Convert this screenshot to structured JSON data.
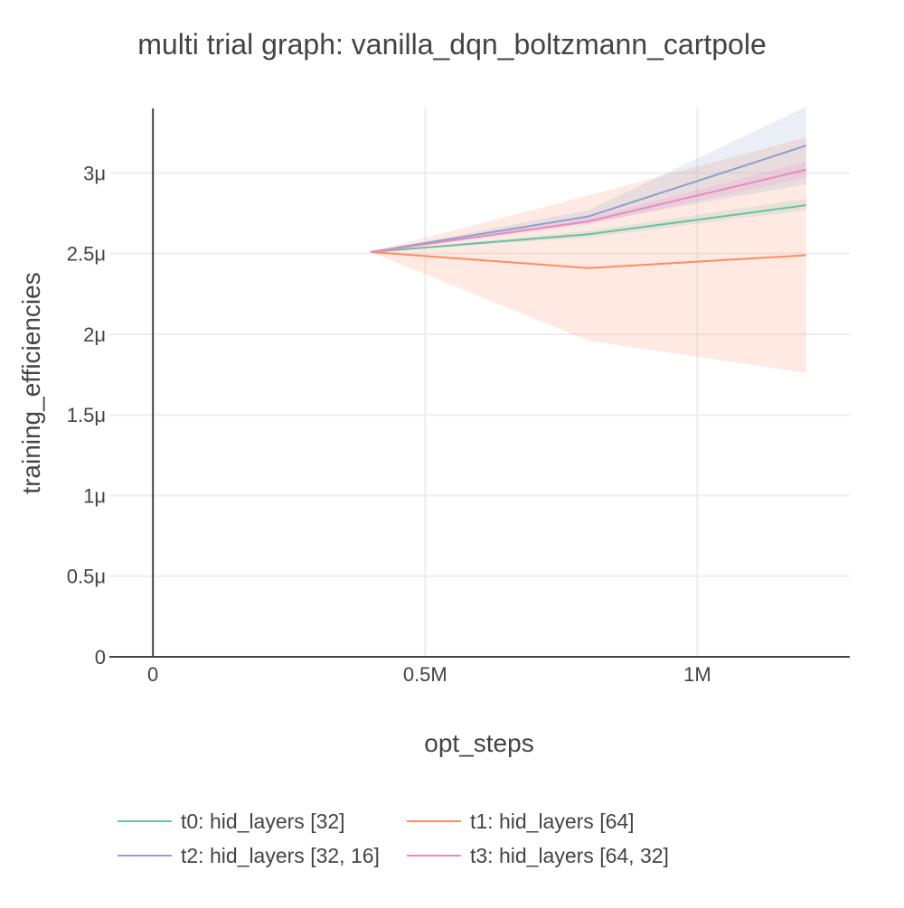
{
  "chart_data": {
    "type": "line",
    "title": "multi trial graph: vanilla_dqn_boltzmann_cartpole",
    "xlabel": "opt_steps",
    "ylabel": "training_efficiencies",
    "xlim": [
      -80000,
      1280000
    ],
    "ylim": [
      0,
      3.4e-06
    ],
    "grid": true,
    "legend_position": "bottom",
    "x_ticks": [
      {
        "value": 0,
        "label": "0"
      },
      {
        "value": 500000,
        "label": "0.5M"
      },
      {
        "value": 1000000,
        "label": "1M"
      }
    ],
    "y_ticks": [
      {
        "value": 0,
        "label": "0"
      },
      {
        "value": 5e-07,
        "label": "0.5μ"
      },
      {
        "value": 1e-06,
        "label": "1μ"
      },
      {
        "value": 1.5e-06,
        "label": "1.5μ"
      },
      {
        "value": 2e-06,
        "label": "2μ"
      },
      {
        "value": 2.5e-06,
        "label": "2.5μ"
      },
      {
        "value": 3e-06,
        "label": "3μ"
      }
    ],
    "x": [
      400000,
      800000,
      1200000
    ],
    "series": [
      {
        "name": "t0: hid_layers [32]",
        "color": "#66c2a5",
        "band_color": "#66c2a5",
        "values": [
          2.51e-06,
          2.62e-06,
          2.8e-06
        ],
        "lower": [
          2.51e-06,
          2.6e-06,
          2.77e-06
        ],
        "upper": [
          2.51e-06,
          2.64e-06,
          2.84e-06
        ]
      },
      {
        "name": "t1: hid_layers [64]",
        "color": "#fc8d62",
        "band_color": "#fc8d62",
        "values": [
          2.51e-06,
          2.41e-06,
          2.49e-06
        ],
        "lower": [
          2.51e-06,
          1.96e-06,
          1.76e-06
        ],
        "upper": [
          2.51e-06,
          2.86e-06,
          3.22e-06
        ]
      },
      {
        "name": "t2: hid_layers [32, 16]",
        "color": "#8da0cb",
        "band_color": "#8da0cb",
        "values": [
          2.51e-06,
          2.73e-06,
          3.17e-06
        ],
        "lower": [
          2.51e-06,
          2.69e-06,
          2.93e-06
        ],
        "upper": [
          2.51e-06,
          2.77e-06,
          3.41e-06
        ]
      },
      {
        "name": "t3: hid_layers [64, 32]",
        "color": "#e78ac3",
        "band_color": "#e78ac3",
        "values": [
          2.51e-06,
          2.7e-06,
          3.02e-06
        ],
        "lower": [
          2.51e-06,
          2.68e-06,
          2.97e-06
        ],
        "upper": [
          2.51e-06,
          2.72e-06,
          3.07e-06
        ]
      }
    ]
  }
}
